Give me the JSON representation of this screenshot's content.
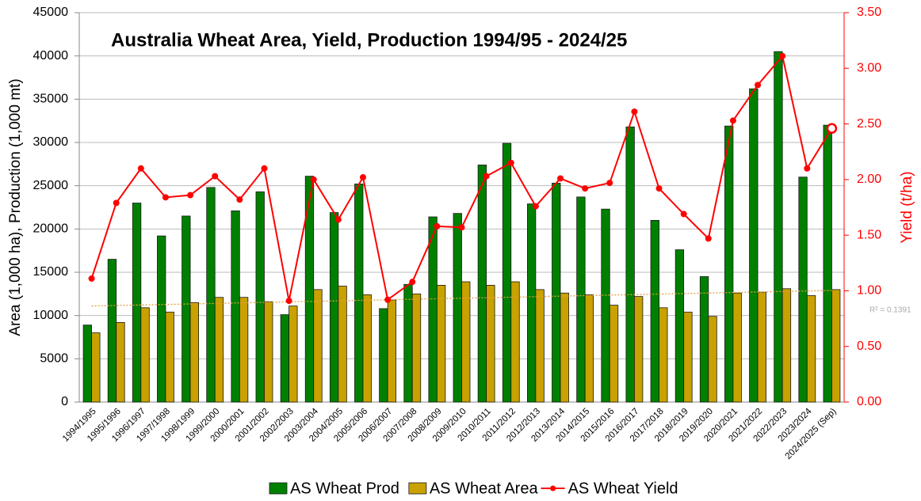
{
  "chart_data": {
    "type": "bar_line",
    "title": "Australia Wheat Area, Yield, Production 1994/95 - 2024/25",
    "y_label": "Area (1,000 ha), Production (1,000 mt)",
    "y2_label": "Yield (t/ha)",
    "categories": [
      "1994/1995",
      "1995/1996",
      "1996/1997",
      "1997/1998",
      "1998/1999",
      "1999/2000",
      "2000/2001",
      "2001/2002",
      "2002/2003",
      "2003/2004",
      "2004/2005",
      "2005/2006",
      "2006/2007",
      "2007/2008",
      "2008/2009",
      "2009/2010",
      "2010/2011",
      "2011/2012",
      "2012/2013",
      "2013/2014",
      "2014/2015",
      "2015/2016",
      "2016/2017",
      "2017/2018",
      "2018/2019",
      "2019/2020",
      "2020/2021",
      "2021/2022",
      "2022/2023",
      "2023/2024",
      "2024/2025 (Sep)"
    ],
    "series": [
      {
        "name": "AS Wheat Prod",
        "type": "bar",
        "color": "#008000",
        "values": [
          8900,
          16500,
          23000,
          19200,
          21500,
          24800,
          22100,
          24300,
          10100,
          26100,
          21900,
          25200,
          10800,
          13600,
          21400,
          21800,
          27400,
          29900,
          22900,
          25300,
          23700,
          22300,
          31800,
          21000,
          17600,
          14500,
          31900,
          36200,
          40500,
          26000,
          32000
        ]
      },
      {
        "name": "AS Wheat Area",
        "type": "bar",
        "color": "#c9a100",
        "values": [
          8000,
          9200,
          10900,
          10400,
          11500,
          12100,
          12100,
          11600,
          11100,
          13000,
          13400,
          12400,
          11800,
          12500,
          13500,
          13900,
          13500,
          13900,
          13000,
          12600,
          12400,
          11200,
          12200,
          10900,
          10400,
          9900,
          12600,
          12700,
          13100,
          12300,
          13000
        ]
      },
      {
        "name": "AS Wheat Yield",
        "type": "line",
        "axis": "y2",
        "color": "#ff0000",
        "values": [
          1.11,
          1.79,
          2.1,
          1.84,
          1.86,
          2.03,
          1.82,
          2.1,
          0.91,
          2.0,
          1.64,
          2.02,
          0.92,
          1.08,
          1.58,
          1.57,
          2.03,
          2.15,
          1.76,
          2.01,
          1.92,
          1.97,
          2.61,
          1.92,
          1.69,
          1.47,
          2.53,
          2.85,
          3.11,
          2.1,
          2.46
        ]
      }
    ],
    "trendline": {
      "values": [
        11100,
        12900
      ],
      "label": "R² = 0.1391",
      "color": "#e0a040"
    },
    "ylim": [
      0,
      45000
    ],
    "yticks": [
      0,
      5000,
      10000,
      15000,
      20000,
      25000,
      30000,
      35000,
      40000,
      45000
    ],
    "y2lim": [
      0,
      3.5
    ],
    "y2ticks": [
      {
        "value": 0,
        "label": "0.00"
      },
      {
        "value": 0.5,
        "label": "0.50"
      },
      {
        "value": 1,
        "label": "1.00"
      },
      {
        "value": 1.5,
        "label": "1.50"
      },
      {
        "value": 2,
        "label": "2.00"
      },
      {
        "value": 2.5,
        "label": "2.50"
      },
      {
        "value": 3,
        "label": "3.00"
      },
      {
        "value": 3.5,
        "label": "3.50"
      }
    ],
    "grid": true,
    "legend": "bottom"
  }
}
